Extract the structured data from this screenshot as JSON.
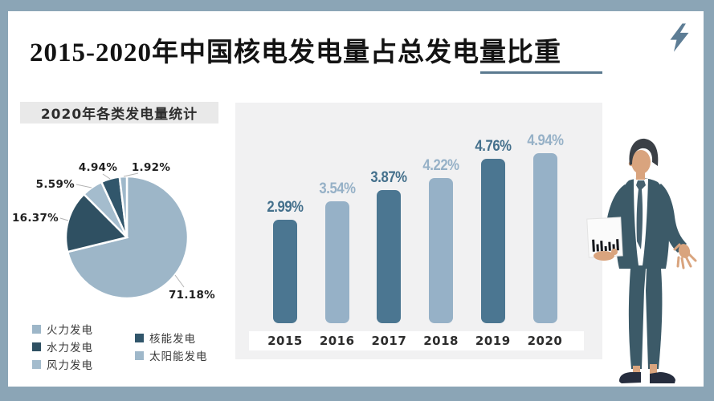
{
  "header": {
    "title": "2015-2020年中国核电发电量占总发电量比重"
  },
  "colors": {
    "frame": "#8ba5b6",
    "card": "#ffffff",
    "card_bottom_edge": "#323d44",
    "title_text": "#131313",
    "title_underline": "#5b7a90",
    "lightning": "#5d7d95",
    "pie_header_bg": "#e9e9e9",
    "pie_header_text": "#2d2d2d",
    "panel_bg": "#f1f1f2",
    "year_strip_bg": "#ffffff",
    "leader_line": "#b3b3b3",
    "suit": "#3c5a68",
    "skin": "#d9a47e",
    "hair": "#3b4046",
    "tie": "#46616f",
    "shoes": "#262d3e",
    "report_card": "#fbfbfb",
    "report_bars": "#15171c"
  },
  "chart_data": [
    {
      "type": "pie",
      "title": "2020年各类发电量统计",
      "start_angle_deg": -90,
      "direction": "clockwise",
      "slices": [
        {
          "label": "火力发电",
          "value": 71.18,
          "display": "71.18%",
          "color": "#9db6c8"
        },
        {
          "label": "水力发电",
          "value": 16.37,
          "display": "16.37%",
          "color": "#2f5062"
        },
        {
          "label": "风力发电",
          "value": 5.59,
          "display": "5.59%",
          "color": "#a4bccd"
        },
        {
          "label": "核能发电",
          "value": 4.94,
          "display": "4.94%",
          "color": "#31566b"
        },
        {
          "label": "太阳能发电",
          "value": 1.92,
          "display": "1.92%",
          "color": "#9fb8ca"
        }
      ],
      "legend_columns": [
        [
          0,
          1,
          2
        ],
        [
          3,
          4
        ]
      ]
    },
    {
      "type": "bar",
      "title": "2015-2020年中国核电发电量占总发电量比重",
      "categories": [
        "2015",
        "2016",
        "2017",
        "2018",
        "2019",
        "2020"
      ],
      "values": [
        2.99,
        3.54,
        3.87,
        4.22,
        4.76,
        4.94
      ],
      "value_labels": [
        "2.99%",
        "3.54%",
        "3.87%",
        "4.22%",
        "4.76%",
        "4.94%"
      ],
      "bar_colors": [
        "#4b7691",
        "#96b1c7",
        "#4b7691",
        "#96b1c7",
        "#4b7691",
        "#96b1c7"
      ],
      "label_colors": [
        "#44708c",
        "#96b1c7",
        "#44708c",
        "#96b1c7",
        "#44708c",
        "#96b1c7"
      ],
      "xlabel": "",
      "ylabel": "",
      "ylim": [
        0,
        5.2
      ],
      "grid": false,
      "legend_position": "none"
    }
  ]
}
